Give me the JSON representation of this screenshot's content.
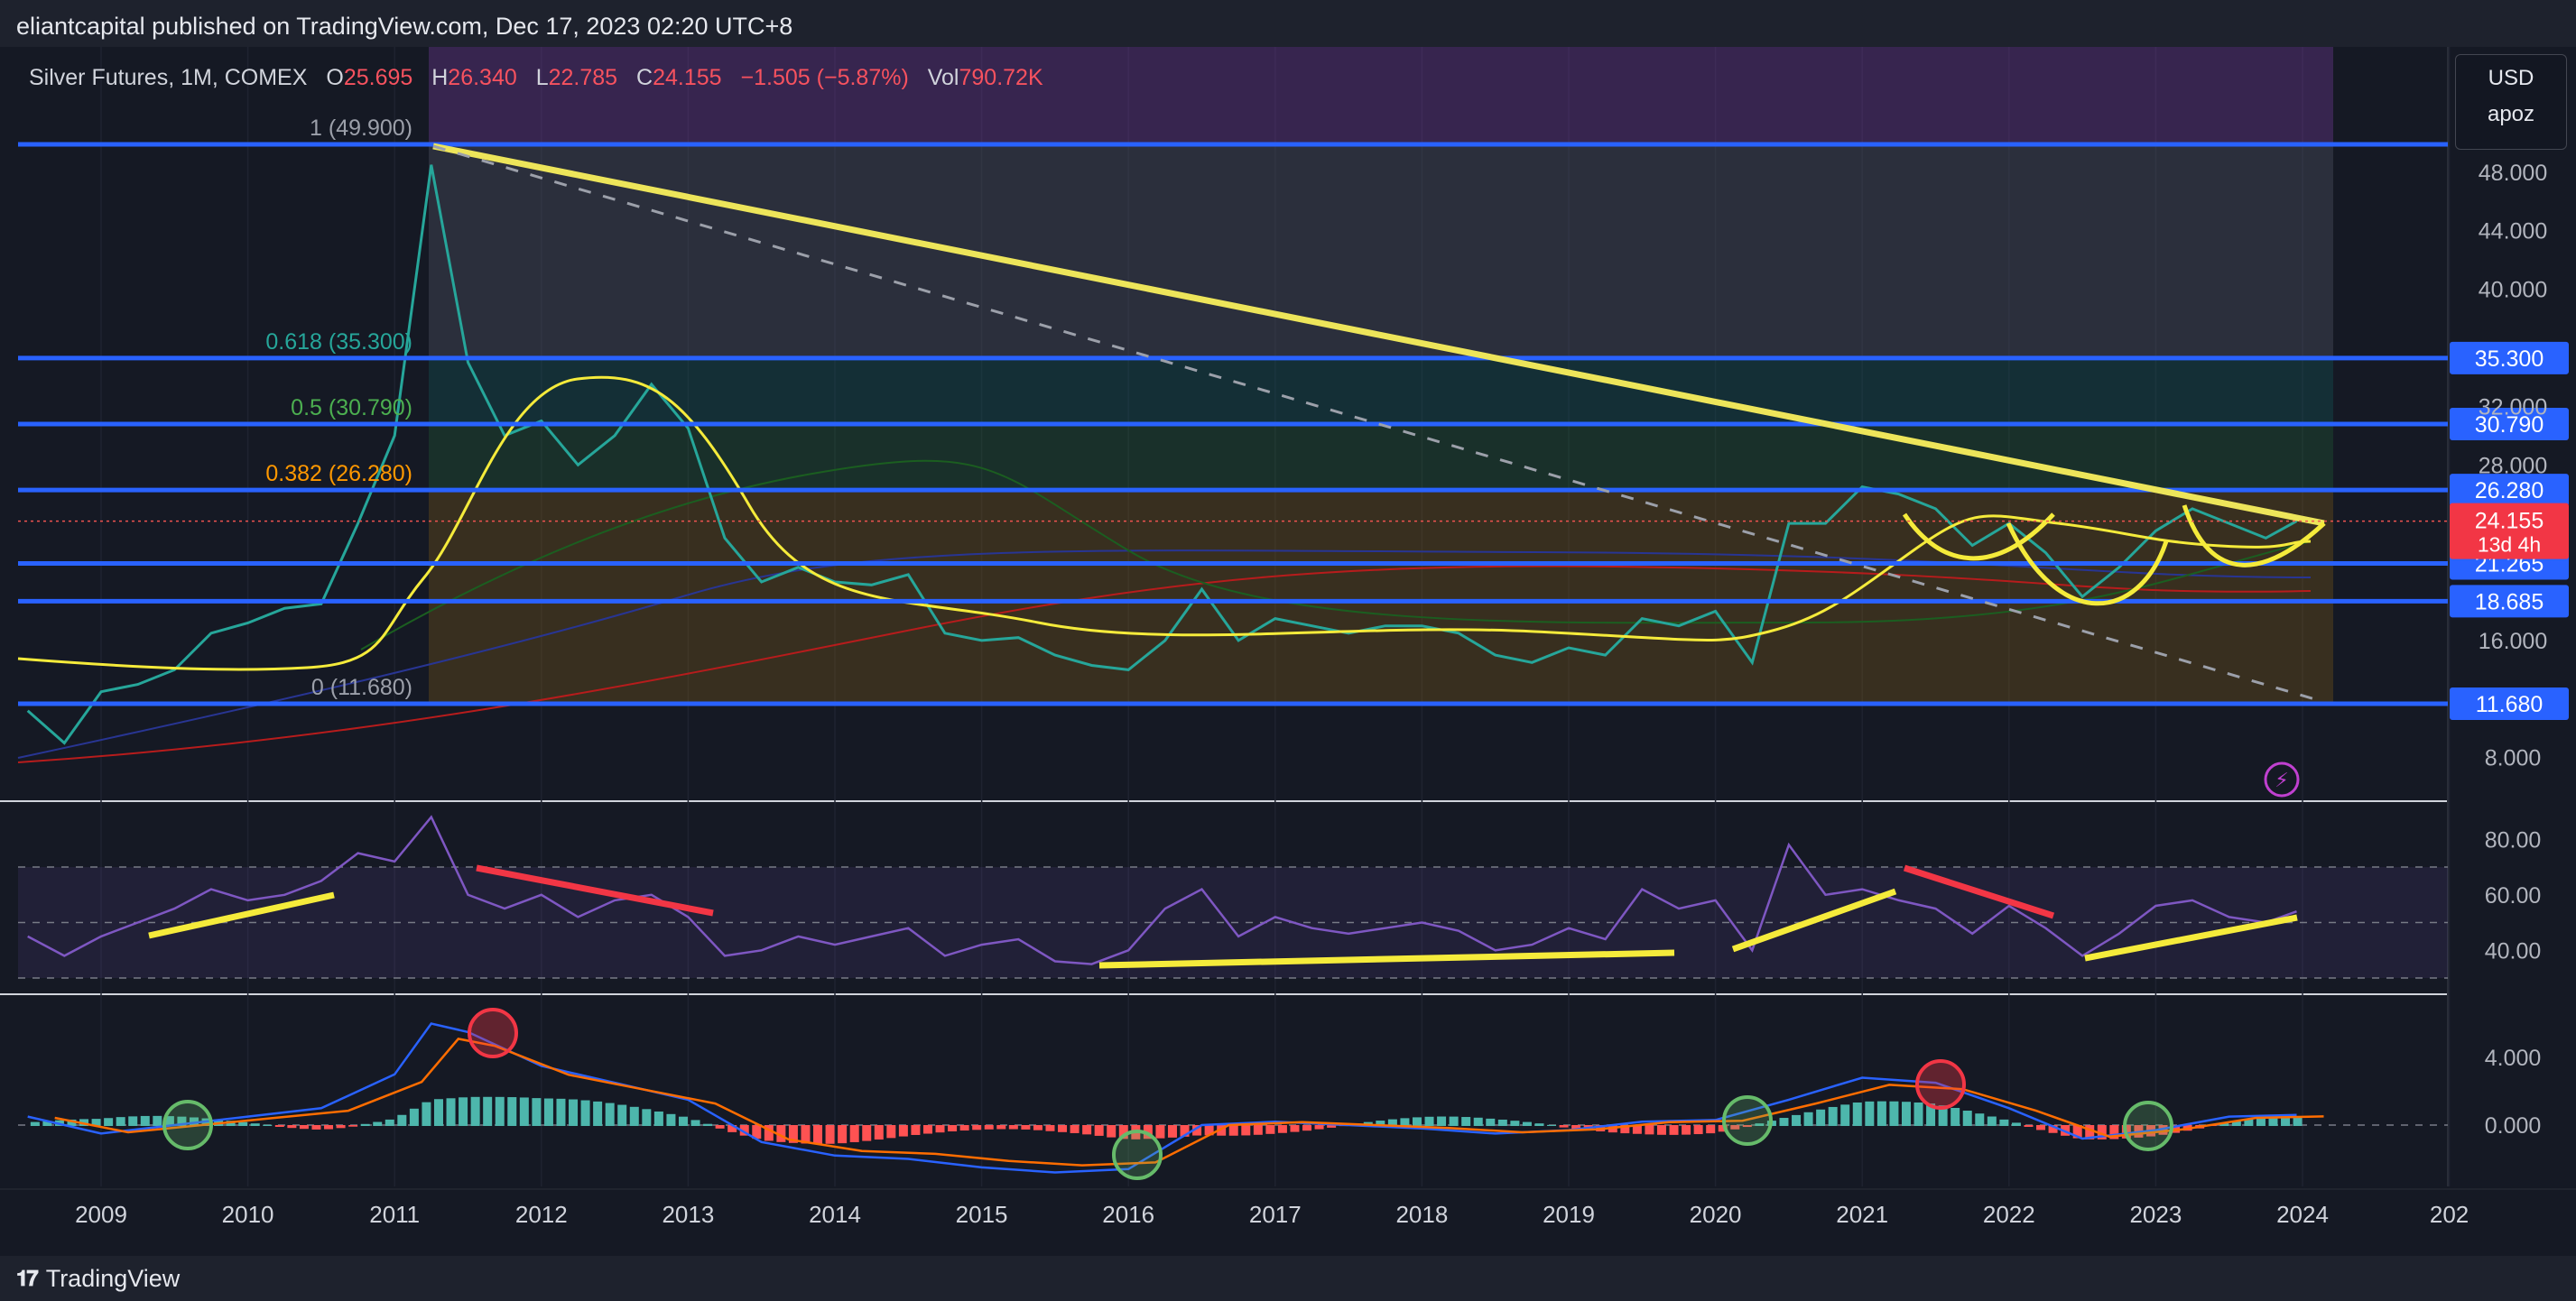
{
  "header": {
    "published": "eliantcapital published on TradingView.com, Dec 17, 2023 02:20 UTC+8"
  },
  "footer": {
    "brand": "TradingView"
  },
  "legend": {
    "symbol": "Silver Futures, 1M, COMEX",
    "o_label": "O",
    "o_value": "25.695",
    "h_label": "H",
    "h_value": "26.340",
    "l_label": "L",
    "l_value": "22.785",
    "c_label": "C",
    "c_value": "24.155",
    "change": "−1.505 (−5.87%)",
    "vol_label": "Vol",
    "vol_value": "790.72K"
  },
  "scale_box": {
    "currency": "USD",
    "mode": "apoz"
  },
  "colors": {
    "up": "#26a69a",
    "down": "#ef5350",
    "fib_line": "#2962ff",
    "trend": "#ede55a",
    "rsi": "#7e57c2"
  },
  "chart_data": [
    {
      "type": "line",
      "panel": "price",
      "title": "Silver Futures, 1M, COMEX",
      "x": [
        "2009",
        "2010",
        "2011",
        "2012",
        "2013",
        "2014",
        "2015",
        "2016",
        "2017",
        "2018",
        "2019",
        "2020",
        "2021",
        "2022",
        "2023",
        "2024",
        "202"
      ],
      "y_axis_labels": [
        "48.000",
        "44.000",
        "40.000",
        "32.000",
        "28.000",
        "16.000",
        "8.000"
      ],
      "series": [
        {
          "values": [
            [
              2008.5,
              11.2
            ],
            [
              2008.75,
              9.0
            ],
            [
              2009.0,
              12.5
            ],
            [
              2009.25,
              13.0
            ],
            [
              2009.5,
              14.0
            ],
            [
              2009.75,
              16.5
            ],
            [
              2010.0,
              17.2
            ],
            [
              2010.25,
              18.2
            ],
            [
              2010.5,
              18.5
            ],
            [
              2010.75,
              24.0
            ],
            [
              2011.0,
              30.0
            ],
            [
              2011.25,
              48.5
            ],
            [
              2011.5,
              35.0
            ],
            [
              2011.75,
              30.0
            ],
            [
              2012.0,
              31.0
            ],
            [
              2012.25,
              28.0
            ],
            [
              2012.5,
              30.0
            ],
            [
              2012.75,
              33.5
            ],
            [
              2013.0,
              30.5
            ],
            [
              2013.25,
              23.0
            ],
            [
              2013.5,
              20.0
            ],
            [
              2013.75,
              21.0
            ],
            [
              2014.0,
              20.0
            ],
            [
              2014.25,
              19.8
            ],
            [
              2014.5,
              20.5
            ],
            [
              2014.75,
              16.5
            ],
            [
              2015.0,
              16.0
            ],
            [
              2015.25,
              16.2
            ],
            [
              2015.5,
              15.0
            ],
            [
              2015.75,
              14.3
            ],
            [
              2016.0,
              14.0
            ],
            [
              2016.25,
              16.0
            ],
            [
              2016.5,
              19.5
            ],
            [
              2016.75,
              16.0
            ],
            [
              2017.0,
              17.5
            ],
            [
              2017.25,
              17.0
            ],
            [
              2017.5,
              16.5
            ],
            [
              2017.75,
              17.0
            ],
            [
              2018.0,
              17.0
            ],
            [
              2018.25,
              16.5
            ],
            [
              2018.5,
              15.0
            ],
            [
              2018.75,
              14.5
            ],
            [
              2019.0,
              15.5
            ],
            [
              2019.25,
              15.0
            ],
            [
              2019.5,
              17.5
            ],
            [
              2019.75,
              17.0
            ],
            [
              2020.0,
              18.0
            ],
            [
              2020.25,
              14.5
            ],
            [
              2020.5,
              24.0
            ],
            [
              2020.75,
              24.0
            ],
            [
              2021.0,
              26.5
            ],
            [
              2021.25,
              26.0
            ],
            [
              2021.5,
              25.0
            ],
            [
              2021.75,
              22.5
            ],
            [
              2022.0,
              24.0
            ],
            [
              2022.25,
              22.0
            ],
            [
              2022.5,
              19.0
            ],
            [
              2022.75,
              21.0
            ],
            [
              2023.0,
              23.5
            ],
            [
              2023.25,
              25.0
            ],
            [
              2023.5,
              24.0
            ],
            [
              2023.75,
              23.0
            ],
            [
              2023.96,
              24.155
            ]
          ]
        }
      ],
      "fib_levels": [
        {
          "ratio": "1 (49.900)",
          "price": 49.9,
          "label": ""
        },
        {
          "ratio": "0.618 (35.300)",
          "price": 35.3,
          "label": "35.300"
        },
        {
          "ratio": "0.5 (30.790)",
          "price": 30.79,
          "label": "30.790"
        },
        {
          "ratio": "0.382 (26.280)",
          "price": 26.28,
          "label": "26.280"
        },
        {
          "ratio": "",
          "price": 21.265,
          "label": "21.265"
        },
        {
          "ratio": "",
          "price": 18.685,
          "label": "18.685"
        },
        {
          "ratio": "0 (11.680)",
          "price": 11.68,
          "label": "11.680"
        }
      ],
      "last_price": {
        "value": "24.155",
        "countdown": "13d 4h"
      }
    },
    {
      "type": "line",
      "panel": "rsi",
      "y_axis_labels": [
        "80.00",
        "60.00",
        "40.00"
      ],
      "levels": [
        70,
        50,
        30
      ],
      "series": [
        {
          "values": [
            [
              2008.5,
              45
            ],
            [
              2008.75,
              38
            ],
            [
              2009.0,
              45
            ],
            [
              2009.25,
              50
            ],
            [
              2009.5,
              55
            ],
            [
              2009.75,
              62
            ],
            [
              2010.0,
              58
            ],
            [
              2010.25,
              60
            ],
            [
              2010.5,
              65
            ],
            [
              2010.75,
              75
            ],
            [
              2011.0,
              72
            ],
            [
              2011.25,
              88
            ],
            [
              2011.5,
              60
            ],
            [
              2011.75,
              55
            ],
            [
              2012.0,
              60
            ],
            [
              2012.25,
              52
            ],
            [
              2012.5,
              58
            ],
            [
              2012.75,
              60
            ],
            [
              2013.0,
              52
            ],
            [
              2013.25,
              38
            ],
            [
              2013.5,
              40
            ],
            [
              2013.75,
              45
            ],
            [
              2014.0,
              42
            ],
            [
              2014.25,
              45
            ],
            [
              2014.5,
              48
            ],
            [
              2014.75,
              38
            ],
            [
              2015.0,
              42
            ],
            [
              2015.25,
              44
            ],
            [
              2015.5,
              36
            ],
            [
              2015.75,
              35
            ],
            [
              2016.0,
              40
            ],
            [
              2016.25,
              55
            ],
            [
              2016.5,
              62
            ],
            [
              2016.75,
              45
            ],
            [
              2017.0,
              52
            ],
            [
              2017.25,
              48
            ],
            [
              2017.5,
              46
            ],
            [
              2017.75,
              48
            ],
            [
              2018.0,
              50
            ],
            [
              2018.25,
              47
            ],
            [
              2018.5,
              40
            ],
            [
              2018.75,
              42
            ],
            [
              2019.0,
              48
            ],
            [
              2019.25,
              44
            ],
            [
              2019.5,
              62
            ],
            [
              2019.75,
              55
            ],
            [
              2020.0,
              58
            ],
            [
              2020.25,
              40
            ],
            [
              2020.5,
              78
            ],
            [
              2020.75,
              60
            ],
            [
              2021.0,
              62
            ],
            [
              2021.25,
              58
            ],
            [
              2021.5,
              55
            ],
            [
              2021.75,
              46
            ],
            [
              2022.0,
              56
            ],
            [
              2022.25,
              48
            ],
            [
              2022.5,
              38
            ],
            [
              2022.75,
              46
            ],
            [
              2023.0,
              56
            ],
            [
              2023.25,
              58
            ],
            [
              2023.5,
              52
            ],
            [
              2023.75,
              50
            ],
            [
              2023.96,
              54
            ]
          ]
        }
      ]
    },
    {
      "type": "line",
      "panel": "macd",
      "y_axis_labels": [
        "4.000",
        "0.000"
      ],
      "series": [
        {
          "values": [
            [
              2008.5,
              0.5
            ],
            [
              2009.0,
              -0.5
            ],
            [
              2009.5,
              0.0
            ],
            [
              2010.0,
              0.5
            ],
            [
              2010.5,
              1.0
            ],
            [
              2011.0,
              3.0
            ],
            [
              2011.25,
              6.0
            ],
            [
              2011.5,
              5.5
            ],
            [
              2012.0,
              3.5
            ],
            [
              2012.5,
              2.5
            ],
            [
              2013.0,
              1.5
            ],
            [
              2013.5,
              -1.0
            ],
            [
              2014.0,
              -1.8
            ],
            [
              2014.5,
              -2.0
            ],
            [
              2015.0,
              -2.5
            ],
            [
              2015.5,
              -2.8
            ],
            [
              2016.0,
              -2.6
            ],
            [
              2016.5,
              0.0
            ],
            [
              2017.0,
              0.2
            ],
            [
              2017.5,
              0.0
            ],
            [
              2018.0,
              -0.2
            ],
            [
              2018.5,
              -0.5
            ],
            [
              2019.0,
              -0.3
            ],
            [
              2019.5,
              0.2
            ],
            [
              2020.0,
              0.3
            ],
            [
              2020.5,
              1.5
            ],
            [
              2021.0,
              2.8
            ],
            [
              2021.5,
              2.5
            ],
            [
              2022.0,
              1.0
            ],
            [
              2022.5,
              -0.8
            ],
            [
              2023.0,
              -0.3
            ],
            [
              2023.5,
              0.5
            ],
            [
              2023.96,
              0.6
            ]
          ]
        }
      ]
    }
  ]
}
